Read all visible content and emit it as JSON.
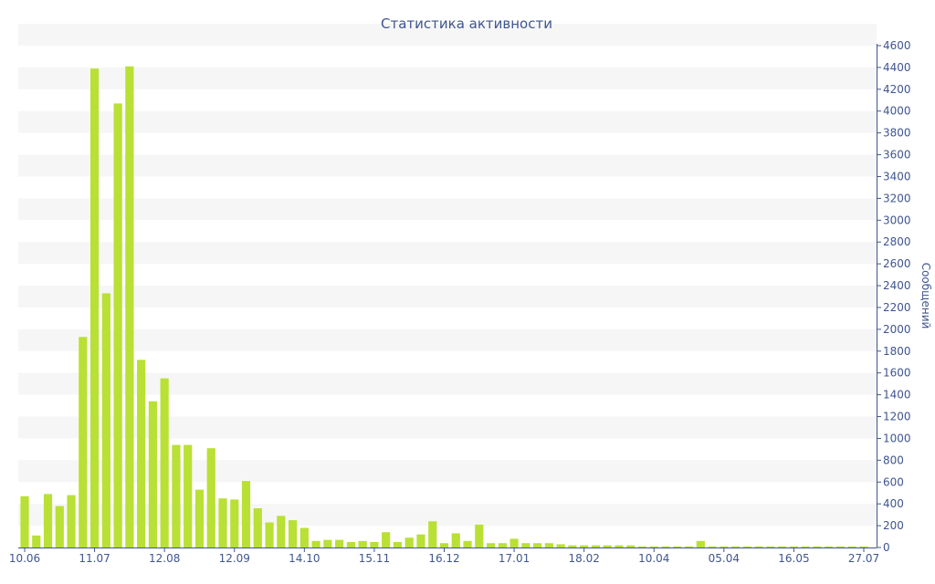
{
  "chart_data": {
    "type": "bar",
    "title": "Статистика активности",
    "xlabel": "",
    "ylabel": "Сообщений",
    "ylim": [
      0,
      4600
    ],
    "y_ticks": [
      0,
      200,
      400,
      600,
      800,
      1000,
      1200,
      1400,
      1600,
      1800,
      2000,
      2200,
      2400,
      2600,
      2800,
      3000,
      3200,
      3400,
      3600,
      3800,
      4000,
      4200,
      4400,
      4600
    ],
    "x_tick_labels": [
      "10.06",
      "11.07",
      "12.08",
      "12.09",
      "14.10",
      "15.11",
      "16.12",
      "17.01",
      "18.02",
      "10.04",
      "05.04",
      "16.05",
      "27.07"
    ],
    "x_tick_bar_index": [
      0,
      6,
      12,
      18,
      24,
      30,
      36,
      42,
      48,
      54,
      60,
      66,
      72
    ],
    "y_axis_position": "right",
    "grid": "alternating horizontal bands",
    "bar_color": "#b9e035",
    "values": [
      470,
      110,
      490,
      380,
      480,
      1930,
      4390,
      2330,
      4070,
      4410,
      1720,
      1340,
      1550,
      940,
      940,
      530,
      910,
      450,
      440,
      610,
      360,
      230,
      290,
      250,
      180,
      60,
      70,
      70,
      50,
      60,
      50,
      140,
      50,
      90,
      120,
      240,
      40,
      130,
      60,
      210,
      40,
      40,
      80,
      40,
      40,
      40,
      30,
      20,
      20,
      20,
      20,
      20,
      20,
      10,
      10,
      10,
      10,
      10,
      60,
      10,
      10,
      10,
      10,
      10,
      10,
      10,
      10,
      10,
      10,
      10,
      10,
      10,
      10
    ]
  }
}
